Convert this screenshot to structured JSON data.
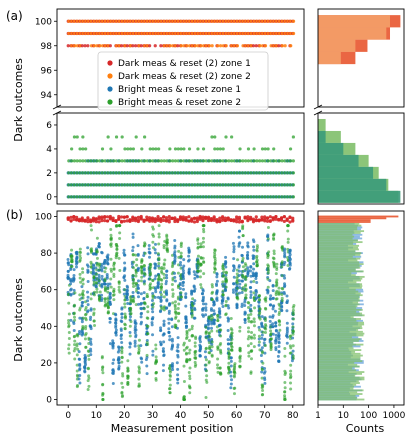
{
  "panel_labels": [
    "(a)",
    "(b)"
  ],
  "colors": {
    "dark_zone1": "#d62728",
    "dark_zone2": "#ff7f0e",
    "bright_zone1": "#1f77b4",
    "bright_zone2": "#2ca02c",
    "hist_orange": "#e8552f",
    "hist_light_orange": "#f5a36b",
    "hist_green": "#7fbf6a",
    "hist_teal": "#3a9a7a"
  },
  "chart_data": [
    {
      "id": "a-top",
      "type": "scatter",
      "ylabel": "Dark outcomes",
      "ylim": [
        93,
        101
      ],
      "yticks": [
        "94",
        "96",
        "98",
        "100"
      ],
      "xlim": [
        -4,
        84
      ],
      "legend_placement": "center",
      "series": [
        {
          "name": "Dark meas & reset (2) zone 1",
          "color": "#d62728",
          "y_levels": [
            100,
            99,
            98
          ]
        },
        {
          "name": "Dark meas & reset (2) zone 2",
          "color": "#ff7f0e",
          "y_levels": [
            100,
            99,
            98
          ]
        },
        {
          "name": "Bright meas & reset zone 1",
          "color": "#1f77b4",
          "y_levels": []
        },
        {
          "name": "Bright meas & reset zone 2",
          "color": "#2ca02c",
          "y_levels": []
        }
      ],
      "x_count": 81
    },
    {
      "id": "a-bottom",
      "type": "scatter",
      "ylim": [
        -0.6,
        7
      ],
      "yticks": [
        "0",
        "2",
        "4",
        "6"
      ],
      "xlim": [
        -4,
        84
      ],
      "series": [
        {
          "name": "Bright meas & reset zone 1",
          "color": "#1f77b4",
          "y_levels": [
            0,
            1,
            2,
            3
          ]
        },
        {
          "name": "Bright meas & reset zone 2",
          "color": "#2ca02c",
          "y_levels": [
            0,
            1,
            2,
            3,
            4,
            5
          ]
        }
      ]
    },
    {
      "id": "a-hist-top",
      "type": "bar",
      "orientation": "horizontal",
      "xscale": "log",
      "categories": [
        100,
        99,
        98,
        97
      ],
      "series": [
        {
          "name": "Dark meas & reset (2) zone 1",
          "color": "#e8552f",
          "values": [
            1800,
            700,
            90,
            30
          ]
        },
        {
          "name": "Dark meas & reset (2) zone 2",
          "color": "#f5a36b",
          "values": [
            700,
            500,
            30,
            8
          ]
        }
      ]
    },
    {
      "id": "a-hist-bottom",
      "type": "bar",
      "orientation": "horizontal",
      "xscale": "log",
      "categories": [
        0,
        1,
        2,
        3,
        4,
        5,
        6
      ],
      "series": [
        {
          "name": "Bright meas & reset zone 1",
          "color": "#3a9a7a",
          "values": [
            1800,
            500,
            150,
            40,
            10,
            2,
            1
          ]
        },
        {
          "name": "Bright meas & reset zone 2",
          "color": "#7fbf6a",
          "values": [
            1500,
            600,
            250,
            100,
            30,
            8,
            2
          ]
        }
      ]
    },
    {
      "id": "b-main",
      "type": "scatter",
      "ylabel": "Dark outcomes",
      "xlabel": "Measurement position",
      "xlim": [
        -4,
        84
      ],
      "ylim": [
        -3,
        103
      ],
      "xticks": [
        "0",
        "10",
        "20",
        "30",
        "40",
        "50",
        "60",
        "70",
        "80"
      ],
      "yticks": [
        "0",
        "20",
        "40",
        "60",
        "80",
        "100"
      ],
      "series": [
        {
          "name": "Dark meas & reset (2) zone 1",
          "color": "#d62728",
          "y_range": [
            97,
            100
          ]
        },
        {
          "name": "Bright meas & reset zone 1",
          "color": "#1f77b4",
          "y_range": [
            0,
            90
          ]
        },
        {
          "name": "Bright meas & reset zone 2",
          "color": "#2ca02c",
          "y_range": [
            0,
            95
          ]
        }
      ]
    },
    {
      "id": "b-hist",
      "type": "bar",
      "orientation": "horizontal",
      "xscale": "log",
      "xlabel": "Counts",
      "xticks": [
        "1",
        "10",
        "100",
        "1000"
      ],
      "series": [
        {
          "name": "Dark meas & reset (2) zone 1",
          "color": "#e8552f",
          "peak_at": [
            97,
            100
          ],
          "peak_value": 1500
        },
        {
          "name": "Bright meas & reset zone 1",
          "color": "#6fa8dc",
          "typical_value": 40
        },
        {
          "name": "Bright meas & reset zone 2",
          "color": "#7fbf6a",
          "typical_value": 50
        }
      ]
    }
  ]
}
